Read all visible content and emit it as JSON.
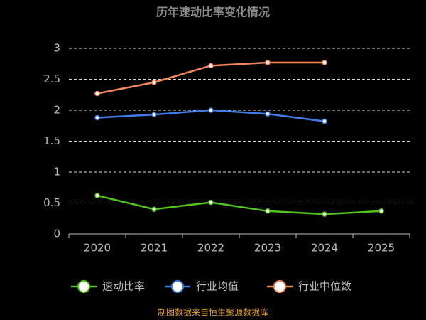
{
  "chart_data": {
    "type": "line",
    "title": "历年速动比率变化情况",
    "categories": [
      "2020",
      "2021",
      "2022",
      "2023",
      "2024",
      "2025"
    ],
    "series": [
      {
        "name": "速动比率",
        "color": "#52c41a",
        "values": [
          0.62,
          0.4,
          0.51,
          0.37,
          0.32,
          0.37
        ]
      },
      {
        "name": "行业均值",
        "color": "#3f7ee8",
        "values": [
          1.88,
          1.93,
          2.0,
          1.94,
          1.82,
          null
        ]
      },
      {
        "name": "行业中位数",
        "color": "#f4875a",
        "values": [
          2.27,
          2.45,
          2.72,
          2.77,
          2.77,
          null
        ]
      }
    ],
    "ylim": [
      0,
      3
    ],
    "yticks": [
      0,
      0.5,
      1,
      1.5,
      2,
      2.5,
      3
    ],
    "grid": true,
    "legend": "bottom",
    "source": "制图数据来自恒生聚源数据库"
  }
}
